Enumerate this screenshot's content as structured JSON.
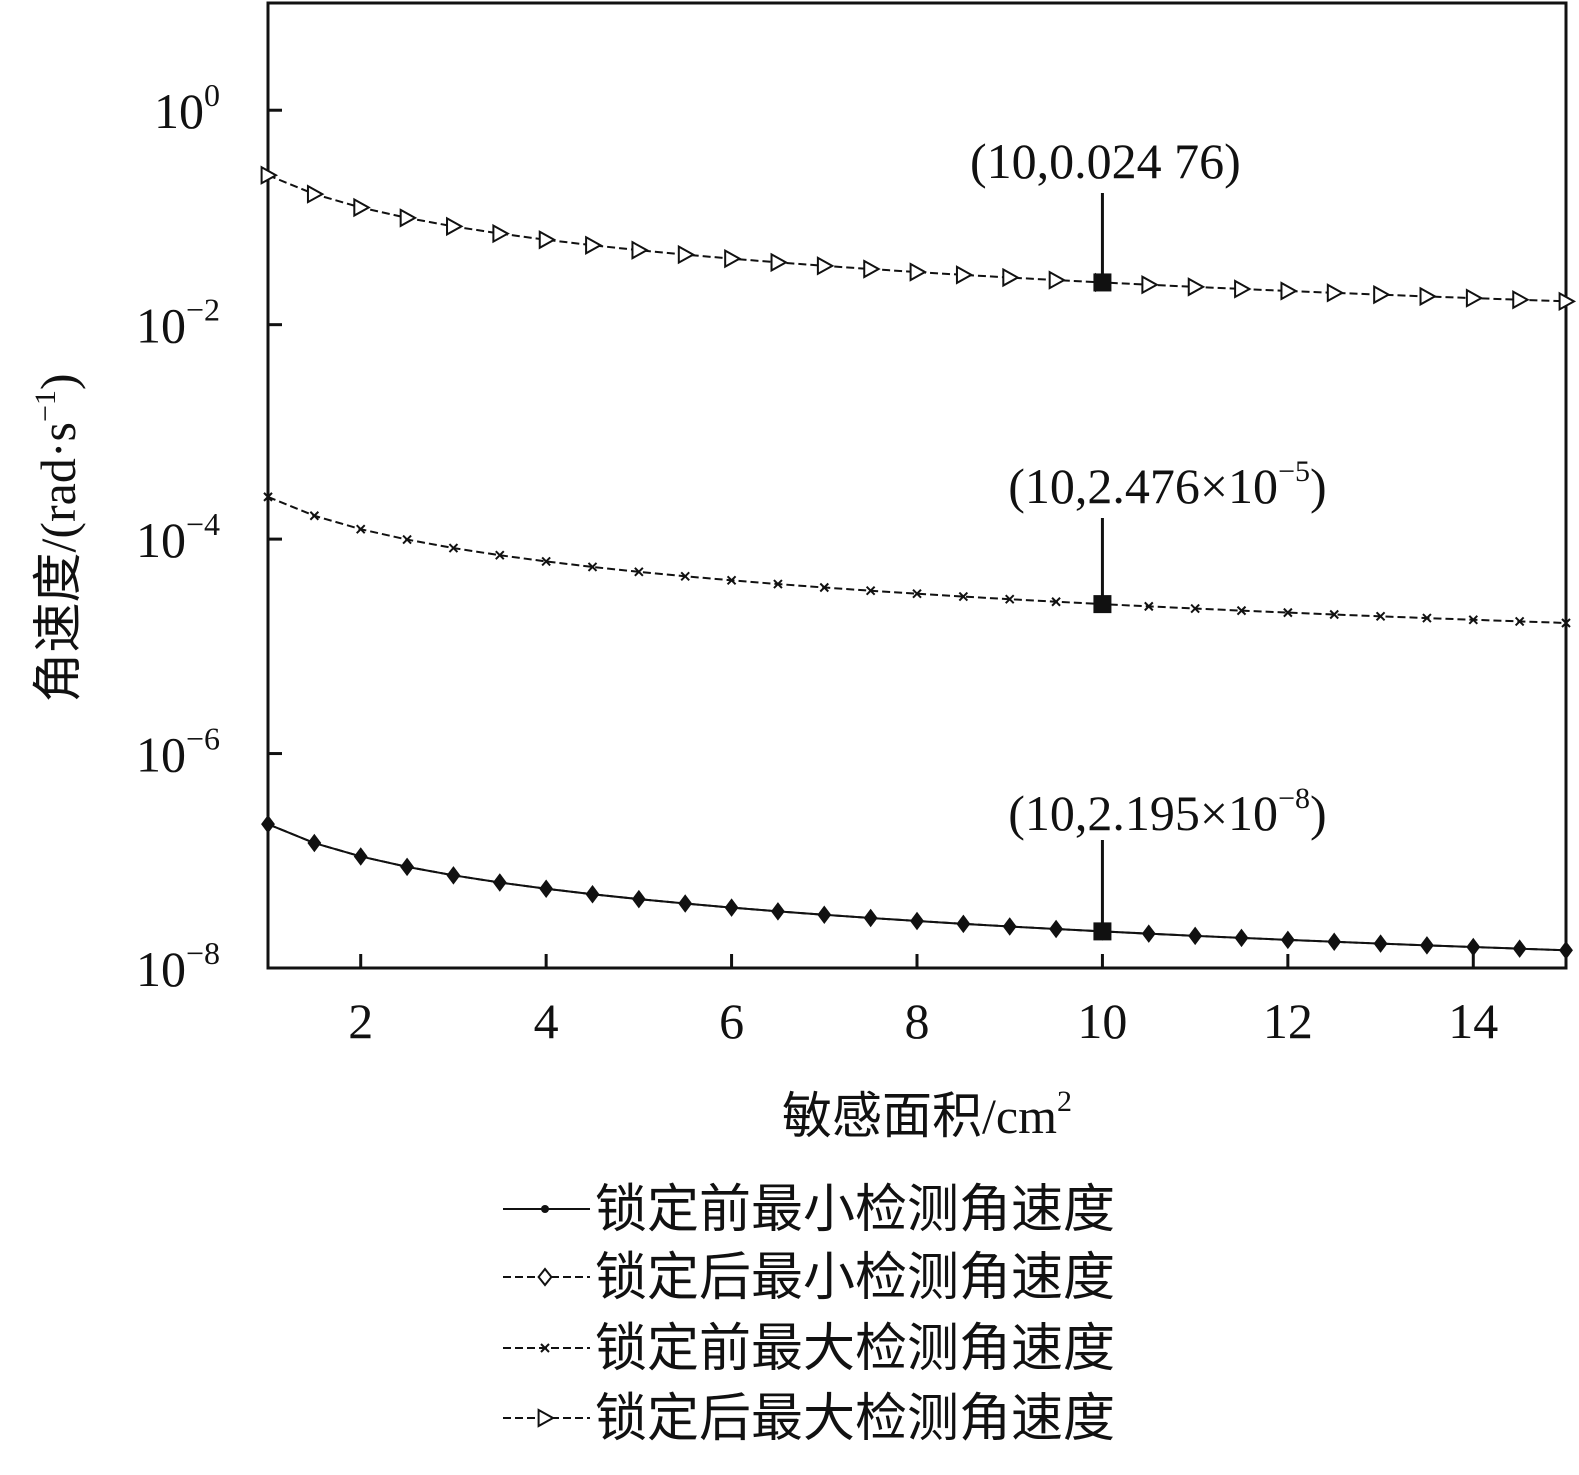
{
  "chart_data": {
    "type": "line",
    "xlabel": "敏感面积/cm",
    "xlabel_sup": "2",
    "ylabel": "角速度/(rad·s",
    "ylabel_sup": "−1",
    "ylabel_end": ")",
    "xlim": [
      1,
      15
    ],
    "ylim": [
      1e-08,
      10
    ],
    "yscale": "log",
    "xticks": [
      2,
      4,
      6,
      8,
      10,
      12,
      14
    ],
    "yticks": [
      {
        "value": 1,
        "base": "10",
        "exp": "0"
      },
      {
        "value": 0.01,
        "base": "10",
        "exp": "−2"
      },
      {
        "value": 0.0001,
        "base": "10",
        "exp": "−4"
      },
      {
        "value": 1e-06,
        "base": "10",
        "exp": "−6"
      },
      {
        "value": 1e-08,
        "base": "10",
        "exp": "−8"
      }
    ],
    "x": [
      1,
      1.5,
      2,
      2.5,
      3,
      3.5,
      4,
      4.5,
      5,
      5.5,
      6,
      6.5,
      7,
      7.5,
      8,
      8.5,
      9,
      9.5,
      10,
      10.5,
      11,
      11.5,
      12,
      12.5,
      13,
      13.5,
      14,
      14.5,
      15
    ],
    "series": [
      {
        "name": "锁定前最小检测角速度",
        "marker": "dot",
        "dash": "none",
        "values": [
          2.195e-07,
          1.463e-07,
          1.0975e-07,
          8.78e-08,
          7.317e-08,
          6.271e-08,
          5.488e-08,
          4.878e-08,
          4.39e-08,
          3.991e-08,
          3.658e-08,
          3.377e-08,
          3.136e-08,
          2.927e-08,
          2.744e-08,
          2.582e-08,
          2.439e-08,
          2.311e-08,
          2.195e-08,
          2.09e-08,
          1.995e-08,
          1.909e-08,
          1.829e-08,
          1.756e-08,
          1.688e-08,
          1.626e-08,
          1.568e-08,
          1.514e-08,
          1.463e-08
        ]
      },
      {
        "name": "锁定后最小检测角速度",
        "marker": "diamond",
        "dash": "dash",
        "values": [
          2.195e-07,
          1.463e-07,
          1.0975e-07,
          8.78e-08,
          7.317e-08,
          6.271e-08,
          5.488e-08,
          4.878e-08,
          4.39e-08,
          3.991e-08,
          3.658e-08,
          3.377e-08,
          3.136e-08,
          2.927e-08,
          2.744e-08,
          2.582e-08,
          2.439e-08,
          2.311e-08,
          2.195e-08,
          2.09e-08,
          1.995e-08,
          1.909e-08,
          1.829e-08,
          1.756e-08,
          1.688e-08,
          1.626e-08,
          1.568e-08,
          1.514e-08,
          1.463e-08
        ]
      },
      {
        "name": "锁定前最大检测角速度",
        "marker": "x",
        "dash": "dash",
        "values": [
          0.0002476,
          0.0001651,
          0.0001238,
          9.904e-05,
          8.253e-05,
          7.074e-05,
          6.19e-05,
          5.502e-05,
          4.952e-05,
          4.502e-05,
          4.127e-05,
          3.809e-05,
          3.537e-05,
          3.301e-05,
          3.095e-05,
          2.913e-05,
          2.751e-05,
          2.606e-05,
          2.476e-05,
          2.358e-05,
          2.251e-05,
          2.153e-05,
          2.063e-05,
          1.981e-05,
          1.905e-05,
          1.834e-05,
          1.769e-05,
          1.708e-05,
          1.651e-05
        ]
      },
      {
        "name": "锁定后最大检测角速度",
        "marker": "triangle-right",
        "dash": "dash",
        "values": [
          0.2476,
          0.1651,
          0.1238,
          0.09904,
          0.08253,
          0.07074,
          0.0619,
          0.05502,
          0.04952,
          0.04502,
          0.04127,
          0.03809,
          0.03537,
          0.03301,
          0.03095,
          0.02913,
          0.02751,
          0.02606,
          0.02476,
          0.02358,
          0.02251,
          0.02153,
          0.02063,
          0.01981,
          0.01905,
          0.01834,
          0.01769,
          0.01708,
          0.01651
        ]
      }
    ],
    "annotations": [
      {
        "x": 10,
        "y": 0.02476,
        "text": "(10,0.024 76)",
        "base": "",
        "sup": "",
        "end": ""
      },
      {
        "x": 10,
        "y": 2.476e-05,
        "text": "(10,2.476×10",
        "sup": "−5",
        "end": ")"
      },
      {
        "x": 10,
        "y": 2.195e-08,
        "text": "(10,2.195×10",
        "sup": "−8",
        "end": ")"
      }
    ],
    "legend_position": "bottom-center",
    "grid": false
  }
}
